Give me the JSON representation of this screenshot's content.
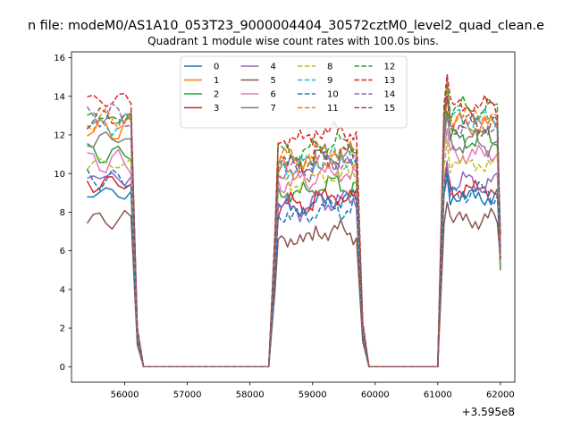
{
  "chart_data": {
    "type": "line",
    "suptitle": "n file: modeM0/AS1A10_053T23_9000004404_30572cztM0_level2_quad_clean.e",
    "title": "Quadrant 1 module wise count rates with 100.0s bins.",
    "xlabel": "",
    "ylabel": "",
    "offset_text": "+3.595e8",
    "xlim": [
      55150,
      62230
    ],
    "ylim": [
      -0.8,
      16.3
    ],
    "x_ticks": [
      56000,
      57000,
      58000,
      59000,
      60000,
      61000,
      62000
    ],
    "x_tick_labels": [
      "56000",
      "57000",
      "58000",
      "59000",
      "60000",
      "61000",
      "62000"
    ],
    "y_ticks": [
      0,
      2,
      4,
      6,
      8,
      10,
      12,
      14,
      16
    ],
    "y_tick_labels": [
      "0",
      "2",
      "4",
      "6",
      "8",
      "10",
      "12",
      "14",
      "16"
    ],
    "legend_position": "upper center, 4 columns",
    "segments": [
      {
        "start": 55400,
        "end": 56100,
        "zero_end": 56300
      },
      {
        "start": 58400,
        "end": 59700,
        "zero_start": 58300,
        "zero_end": 59900
      },
      {
        "start": 61100,
        "end": 62000,
        "zero_start": 61000
      }
    ],
    "series": [
      {
        "name": "0",
        "color": "#1f77b4",
        "dash": "solid",
        "level": [
          9.0,
          8.2,
          8.8
        ]
      },
      {
        "name": "1",
        "color": "#ff7f0e",
        "dash": "solid",
        "level": [
          12.3,
          10.3,
          12.5
        ]
      },
      {
        "name": "2",
        "color": "#2ca02c",
        "dash": "solid",
        "level": [
          11.0,
          9.0,
          11.8
        ]
      },
      {
        "name": "3",
        "color": "#d62728",
        "dash": "solid",
        "level": [
          9.5,
          8.4,
          9.2
        ]
      },
      {
        "name": "4",
        "color": "#9467bd",
        "dash": "solid",
        "level": [
          9.8,
          8.2,
          9.5
        ]
      },
      {
        "name": "5",
        "color": "#8c564b",
        "dash": "solid",
        "level": [
          7.6,
          6.6,
          7.6
        ]
      },
      {
        "name": "6",
        "color": "#e377c2",
        "dash": "solid",
        "level": [
          10.6,
          9.6,
          11.0
        ]
      },
      {
        "name": "7",
        "color": "#7f7f7f",
        "dash": "solid",
        "level": [
          11.8,
          10.5,
          11.6
        ]
      },
      {
        "name": "8",
        "color": "#bcbd22",
        "dash": "dashed",
        "level": [
          10.5,
          9.5,
          10.5
        ]
      },
      {
        "name": "9",
        "color": "#17becf",
        "dash": "dashed",
        "level": [
          12.5,
          10.4,
          12.8
        ]
      },
      {
        "name": "10",
        "color": "#1f77b4",
        "dash": "dashed",
        "level": [
          9.7,
          7.8,
          9.0
        ]
      },
      {
        "name": "11",
        "color": "#ff7f0e",
        "dash": "dashed",
        "level": [
          12.8,
          10.8,
          13.0
        ]
      },
      {
        "name": "12",
        "color": "#2ca02c",
        "dash": "dashed",
        "level": [
          12.9,
          11.1,
          13.3
        ]
      },
      {
        "name": "13",
        "color": "#d62728",
        "dash": "dashed",
        "level": [
          13.8,
          11.8,
          13.5
        ]
      },
      {
        "name": "14",
        "color": "#9467bd",
        "dash": "dashed",
        "level": [
          13.0,
          10.2,
          12.5
        ]
      },
      {
        "name": "15",
        "color": "#8c564b",
        "dash": "dashed",
        "level": [
          12.9,
          10.5,
          12.5
        ]
      }
    ]
  }
}
